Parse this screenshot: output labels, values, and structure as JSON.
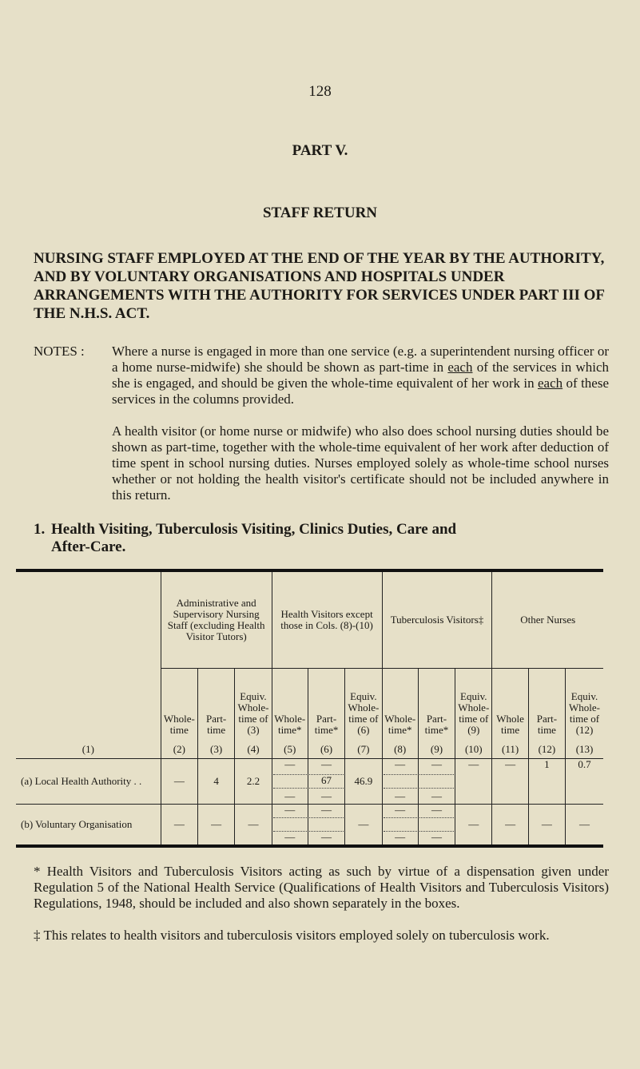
{
  "page_number": "128",
  "part": "PART V.",
  "subtitle": "STAFF RETURN",
  "heading": "NURSING STAFF EMPLOYED AT THE END OF THE YEAR BY THE AUTHORITY, AND BY VOLUNTARY ORGANISATIONS AND HOSPITALS UNDER ARRANGEMENTS WITH THE AUTHORITY FOR SERVICES UNDER PART III OF THE N.H.S. ACT.",
  "notes": {
    "label": "NOTES :",
    "p1a": "Where a nurse is engaged in more than one service (e.g. a superintendent nursing officer or a home nurse-midwife) she should be shown as part-time in ",
    "p1_each1": "each",
    "p1b": " of the services in which she is engaged, and should be given the whole-time equivalent of her work in ",
    "p1_each2": "each",
    "p1c": " of these services in the columns provided.",
    "p2": "A health visitor (or home nurse or midwife) who also does school nursing duties should be shown as part-time, together with the whole-time equivalent of her work after deduction of time spent in school nursing duties. Nurses employed solely as whole-time school nurses whether or not holding the health visitor's certificate should not be included anywhere in this return."
  },
  "section": {
    "number": "1.",
    "line1": "Health Visiting, Tuberculosis Visiting, Clinics Duties, Care and",
    "line2": "After-Care."
  },
  "table": {
    "groups": [
      "Administrative and Supervisory Nursing Staff (excluding Health Visitor Tutors)",
      "Health Visitors except those in Cols. (8)-(10)",
      "Tuberculosis Visitors‡",
      "Other Nurses"
    ],
    "first_col": "(1)",
    "columns": [
      {
        "label": "Whole-time",
        "num": "(2)"
      },
      {
        "label": "Part-time",
        "num": "(3)"
      },
      {
        "label": "Equiv. Whole-time of (3)",
        "num": "(4)"
      },
      {
        "label": "Whole-time*",
        "num": "(5)"
      },
      {
        "label": "Part-time*",
        "num": "(6)"
      },
      {
        "label": "Equiv. Whole-time of (6)",
        "num": "(7)"
      },
      {
        "label": "Whole-time*",
        "num": "(8)"
      },
      {
        "label": "Part-time*",
        "num": "(9)"
      },
      {
        "label": "Equiv. Whole-time of (9)",
        "num": "(10)"
      },
      {
        "label": "Whole time",
        "num": "(11)"
      },
      {
        "label": "Part-time",
        "num": "(12)"
      },
      {
        "label": "Equiv. Whole-time of (12)",
        "num": "(13)"
      }
    ],
    "rows": [
      {
        "label": "(a) Local Health Authority . .",
        "c2": "—",
        "c3": "4",
        "c4": "2.2",
        "c5": {
          "top": "—",
          "mid": "",
          "bottom": "—"
        },
        "c6": {
          "top": "—",
          "mid": "67",
          "bottom": "—"
        },
        "c7": "46.9",
        "c8": {
          "top": "—",
          "mid": "",
          "bottom": "—"
        },
        "c9": {
          "top": "—",
          "mid": "",
          "bottom": "—"
        },
        "c10": "—",
        "c11": "—",
        "c12": "1",
        "c13": "0.7"
      },
      {
        "label": "(b) Voluntary Organisation",
        "c2": "—",
        "c3": "—",
        "c4": "—",
        "c5": {
          "top": "—",
          "mid": "",
          "bottom": "—"
        },
        "c6": {
          "top": "—",
          "mid": "",
          "bottom": "—"
        },
        "c7": "—",
        "c8": {
          "top": "—",
          "mid": "",
          "bottom": "—"
        },
        "c9": {
          "top": "—",
          "mid": "",
          "bottom": "—"
        },
        "c10": "—",
        "c11": "—",
        "c12": "—",
        "c13": "—"
      }
    ]
  },
  "footnotes": [
    "* Health Visitors and Tuberculosis Visitors acting as such by virtue of a dispensation given under Regulation 5 of the National Health Service (Qualifications of Health Visitors and Tuberculosis Visitors) Regulations, 1948, should be included and also shown separately in the boxes.",
    "‡ This relates to health visitors and tuberculosis visitors employed solely on tuberculosis work."
  ]
}
